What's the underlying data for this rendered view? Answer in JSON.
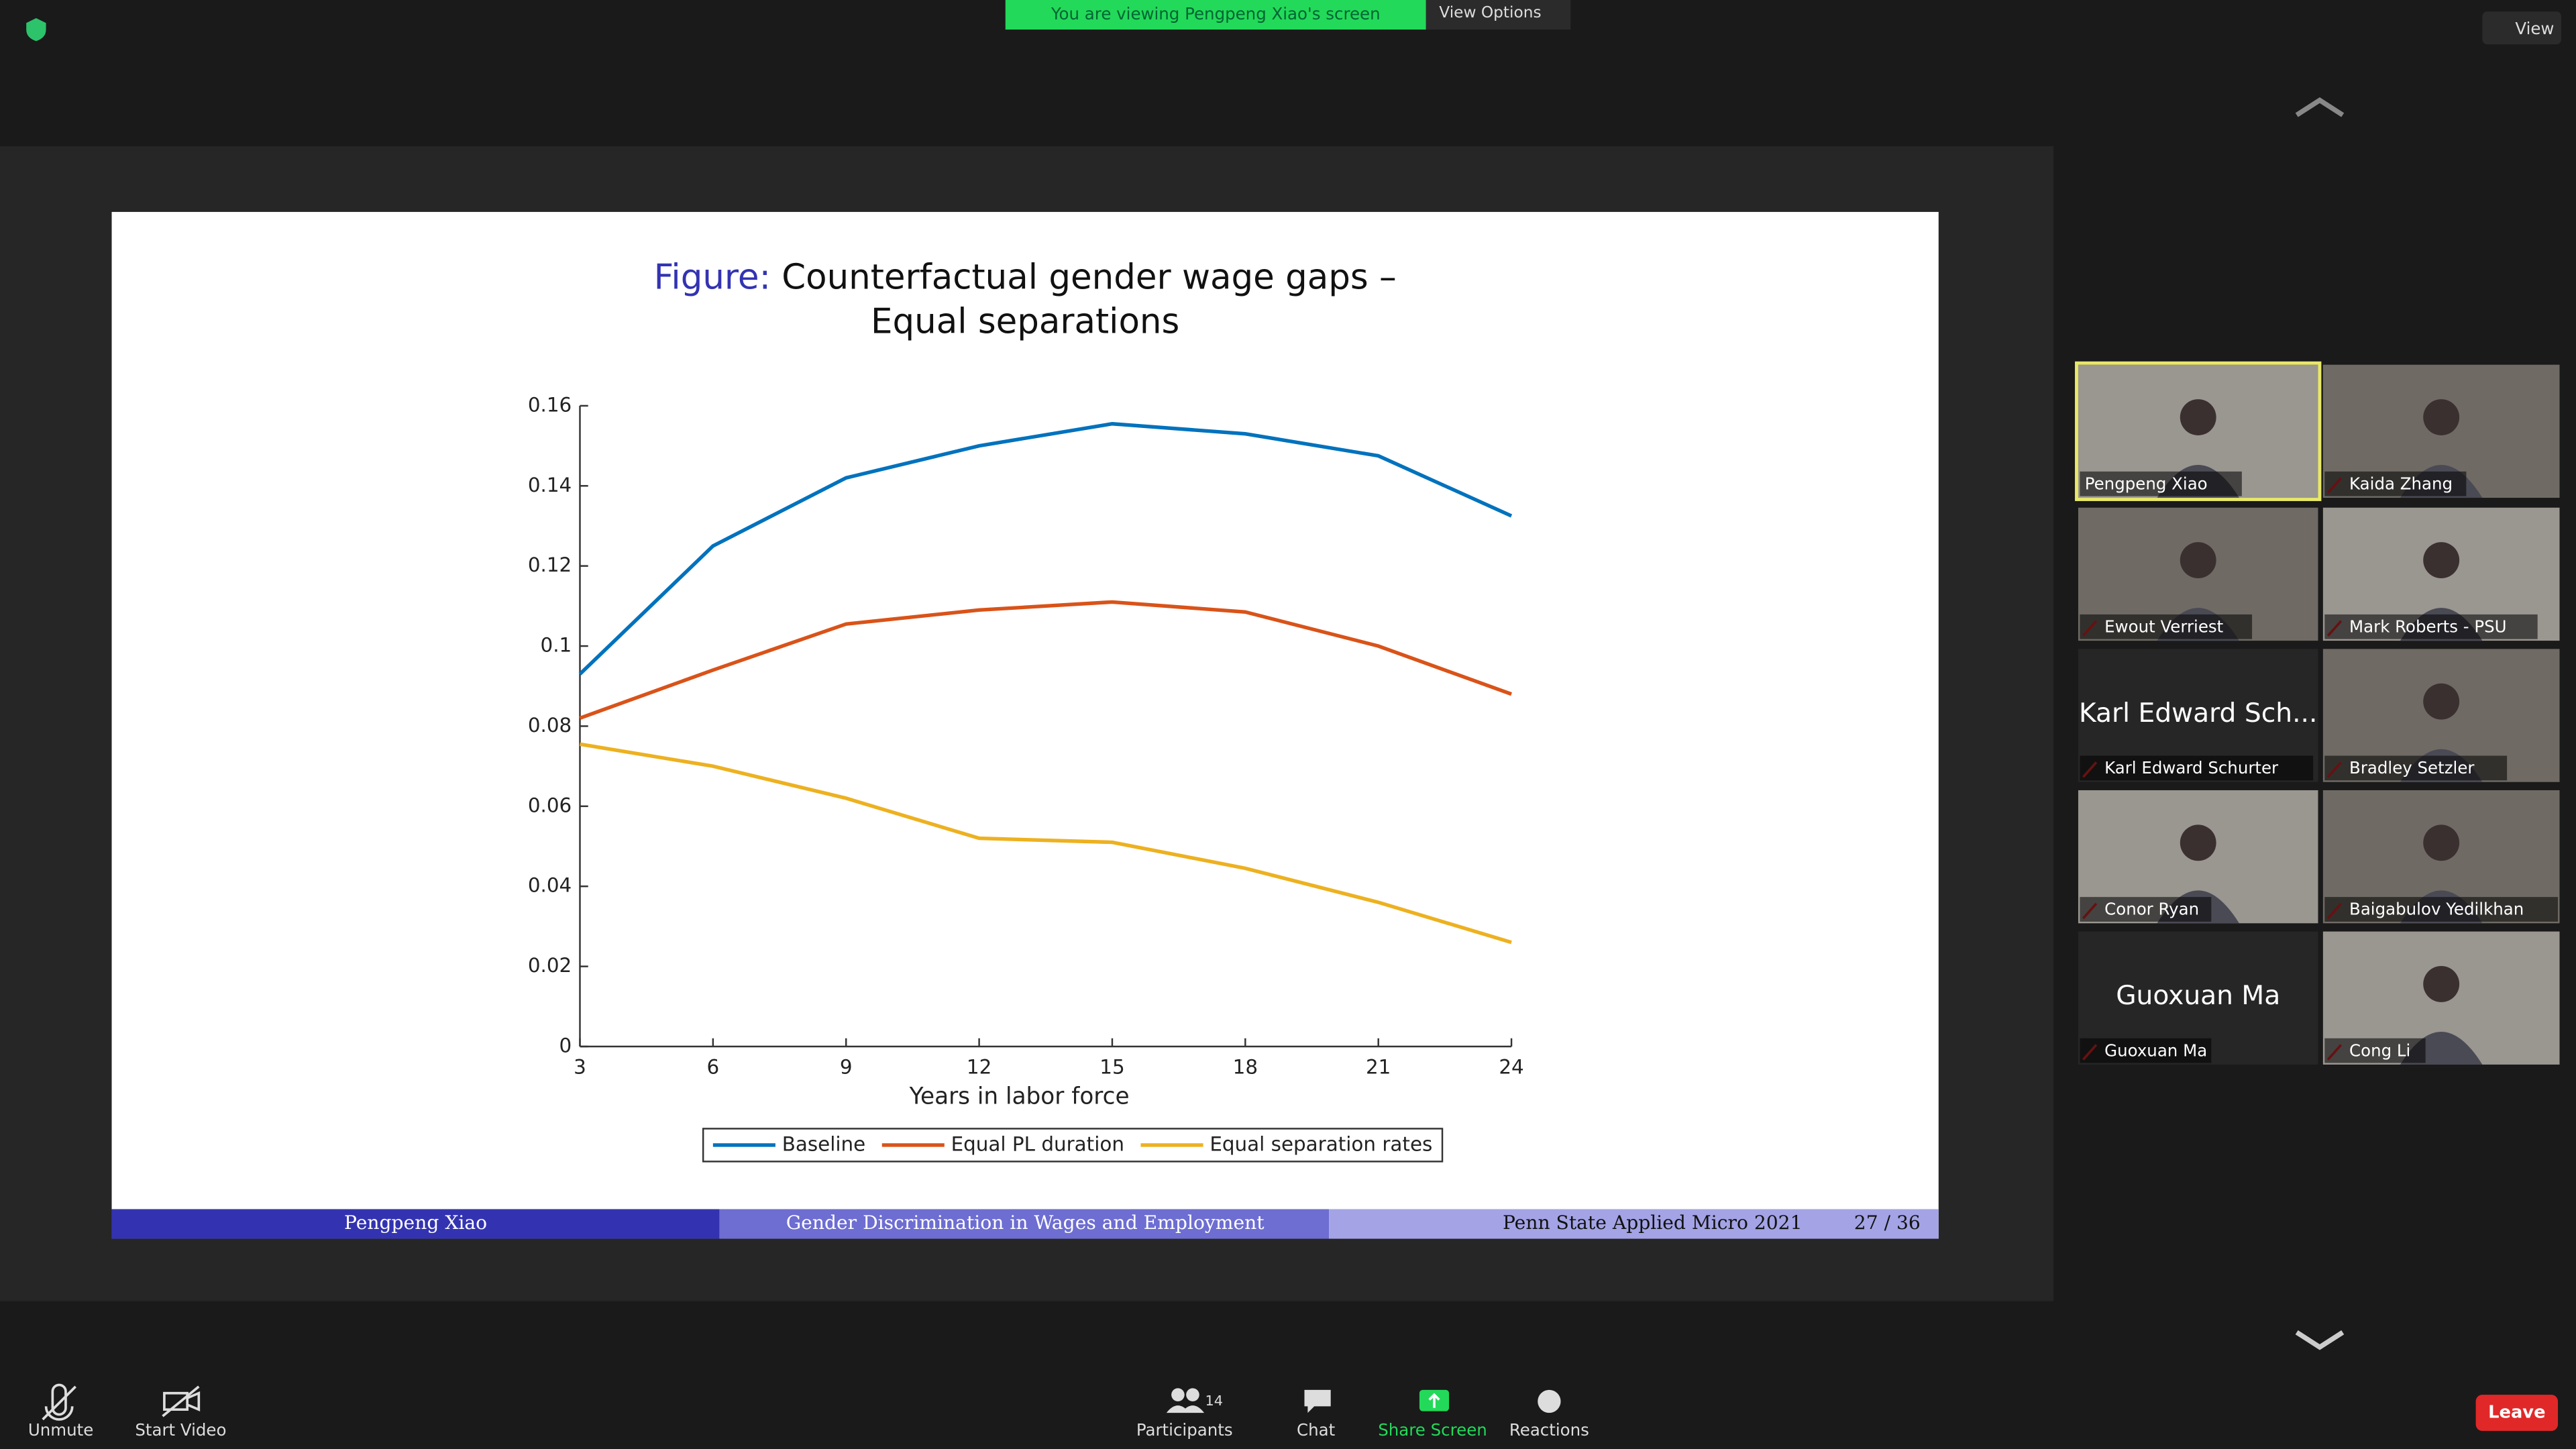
{
  "banner": "You are viewing Pengpeng Xiao's screen",
  "view_options": "View Options",
  "view": "View",
  "slide": {
    "title_label": "Figure:",
    "title": [
      "Counterfactual gender wage gaps –",
      "Equal separations"
    ],
    "footer": {
      "author": "Pengpeng Xiao",
      "talk": "Gender Discrimination in Wages and Employment",
      "event": "Penn State Applied Micro 2021",
      "page": "27 / 36"
    }
  },
  "chart_data": {
    "type": "line",
    "xlabel": "Years in labor force",
    "x": [
      3,
      6,
      9,
      12,
      15,
      18,
      21,
      24
    ],
    "xlim": [
      3,
      24
    ],
    "xticks": [
      3,
      6,
      9,
      12,
      15,
      18,
      21,
      24
    ],
    "ylim": [
      0,
      0.16
    ],
    "yticks": [
      0,
      0.02,
      0.04,
      0.06,
      0.08,
      0.1,
      0.12,
      0.14,
      0.16
    ],
    "legend": "bottom",
    "series": [
      {
        "name": "Baseline",
        "color": "#0072bd",
        "values": [
          0.093,
          0.125,
          0.142,
          0.15,
          0.1555,
          0.153,
          0.1475,
          0.1325
        ]
      },
      {
        "name": "Equal PL duration",
        "color": "#d95319",
        "values": [
          0.082,
          0.094,
          0.1055,
          0.109,
          0.111,
          0.1085,
          0.1,
          0.088
        ]
      },
      {
        "name": "Equal separation rates",
        "color": "#edb120",
        "values": [
          0.0755,
          0.07,
          0.062,
          0.052,
          0.051,
          0.0445,
          0.036,
          0.026
        ]
      }
    ]
  },
  "participants": [
    {
      "name": "Pengpeng Xiao"
    },
    {
      "name": "Kaida Zhang"
    },
    {
      "name": "Ewout Verriest"
    },
    {
      "name": "Mark Roberts - PSU"
    },
    {
      "name": "Karl Edward Schurter",
      "display": "Karl Edward Sch..."
    },
    {
      "name": "Bradley Setzler"
    },
    {
      "name": "Conor Ryan"
    },
    {
      "name": "Baigabulov Yedilkhan"
    },
    {
      "name": "Guoxuan Ma",
      "display": "Guoxuan Ma"
    },
    {
      "name": "Cong Li"
    }
  ],
  "toolbar": {
    "unmute": "Unmute",
    "start_video": "Start Video",
    "participant_count": 14,
    "participants": "Participants",
    "chat": "Chat",
    "share_screen": "Share Screen",
    "reactions": "Reactions",
    "leave": "Leave"
  }
}
